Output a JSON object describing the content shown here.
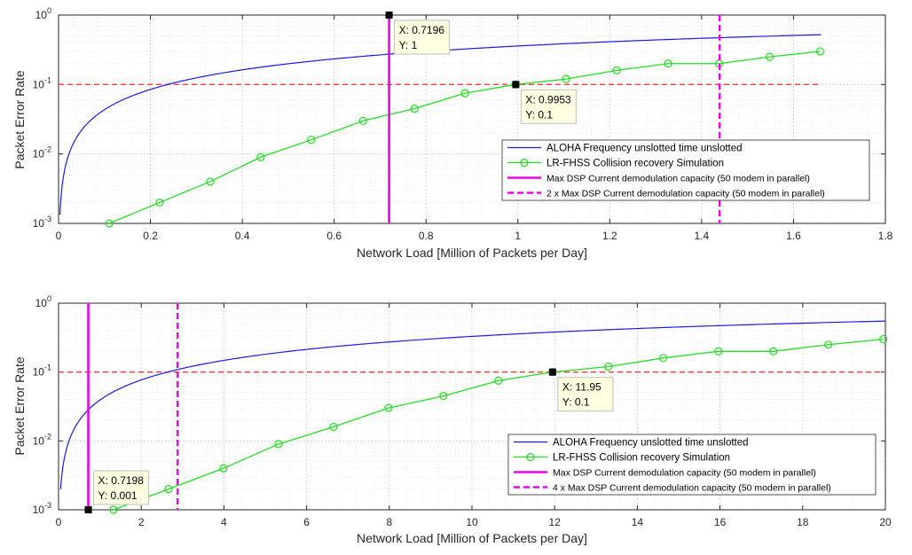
{
  "chart_data": [
    {
      "type": "line",
      "xlabel": "Network Load [Million of Packets per Day]",
      "ylabel": "Packet Error Rate",
      "xlim": [
        0,
        1.8
      ],
      "ylim": [
        0.001,
        1
      ],
      "yscale": "log",
      "grid": true,
      "legend_placement": "bottom-right",
      "x_ticks": [
        "0",
        "0.2",
        "0.4",
        "0.6",
        "0.8",
        "1",
        "1.2",
        "1.4",
        "1.6",
        "1.8"
      ],
      "series": [
        {
          "name": "ALOHA Frequency unslotted time unslotted",
          "color": "#1a1ae6",
          "style": "solid",
          "formula": "pfa",
          "x_range": [
            0.003,
            1.66
          ]
        },
        {
          "name": "LR-FHSS Collision recovery Simulation",
          "color": "#22dd22",
          "style": "solid-circle-markers",
          "x": [
            0.11,
            0.22,
            0.33,
            0.44,
            0.55,
            0.663,
            0.775,
            0.885,
            0.9953,
            1.105,
            1.215,
            1.327,
            1.438,
            1.548,
            1.658
          ],
          "y": [
            0.001,
            0.002,
            0.004,
            0.009,
            0.016,
            0.03,
            0.045,
            0.075,
            0.1,
            0.12,
            0.16,
            0.2,
            0.2,
            0.25,
            0.3
          ]
        },
        {
          "name": "Max DSP Current demodulation capacity (50 modem in parallel)",
          "color": "#ee00ee",
          "style": "vertical-solid",
          "x": 0.7196
        },
        {
          "name": "2 x Max DSP Current demodulation capacity (50 modem in parallel)",
          "color": "#ee00ee",
          "style": "vertical-dashed",
          "x": 1.4392
        }
      ],
      "reference_line": {
        "y": 0.1,
        "x_end": 1.66,
        "color": "#ff3b3b",
        "style": "dashed"
      },
      "annotations": [
        {
          "x": 0.7196,
          "y": 1,
          "line1": "X: 0.7196",
          "line2": "Y: 1",
          "side": "below-right"
        },
        {
          "x": 0.9953,
          "y": 0.1,
          "line1": "X: 0.9953",
          "line2": "Y: 0.1",
          "side": "below-right"
        }
      ]
    },
    {
      "type": "line",
      "xlabel": "Network Load [Million of Packets per Day]",
      "ylabel": "Packet Error Rate",
      "xlim": [
        0,
        20
      ],
      "ylim": [
        0.001,
        1
      ],
      "yscale": "log",
      "grid": true,
      "legend_placement": "bottom-right",
      "x_ticks": [
        "0",
        "2",
        "4",
        "6",
        "8",
        "10",
        "12",
        "14",
        "16",
        "18",
        "20"
      ],
      "series": [
        {
          "name": "ALOHA Frequency unslotted time unslotted",
          "color": "#1a1ae6",
          "style": "solid",
          "formula": "pfa",
          "x_range": [
            0.05,
            20
          ]
        },
        {
          "name": "LR-FHSS Collision recovery Simulation",
          "color": "#22dd22",
          "style": "solid-circle-markers",
          "x": [
            1.33,
            2.66,
            3.99,
            5.32,
            6.65,
            7.98,
            9.31,
            10.64,
            11.95,
            13.3,
            14.63,
            15.96,
            17.29,
            18.62,
            19.95
          ],
          "y": [
            0.001,
            0.002,
            0.004,
            0.009,
            0.016,
            0.03,
            0.045,
            0.075,
            0.1,
            0.12,
            0.16,
            0.2,
            0.2,
            0.25,
            0.3
          ]
        },
        {
          "name": "Max DSP Current demodulation capacity (50 modem in parallel)",
          "color": "#ee00ee",
          "style": "vertical-solid",
          "x": 0.7198
        },
        {
          "name": "4 x Max DSP Current demodulation capacity (50 modem in parallel)",
          "color": "#ee00ee",
          "style": "vertical-dashed",
          "x": 2.879
        }
      ],
      "reference_line": {
        "y": 0.1,
        "x_end": 20,
        "color": "#ff3b3b",
        "style": "dashed"
      },
      "annotations": [
        {
          "x": 0.7198,
          "y": 0.001,
          "line1": "X: 0.7198",
          "line2": "Y: 0.001",
          "side": "above-right"
        },
        {
          "x": 11.95,
          "y": 0.1,
          "line1": "X: 11.95",
          "line2": "Y: 0.1",
          "side": "below-right"
        }
      ]
    }
  ]
}
